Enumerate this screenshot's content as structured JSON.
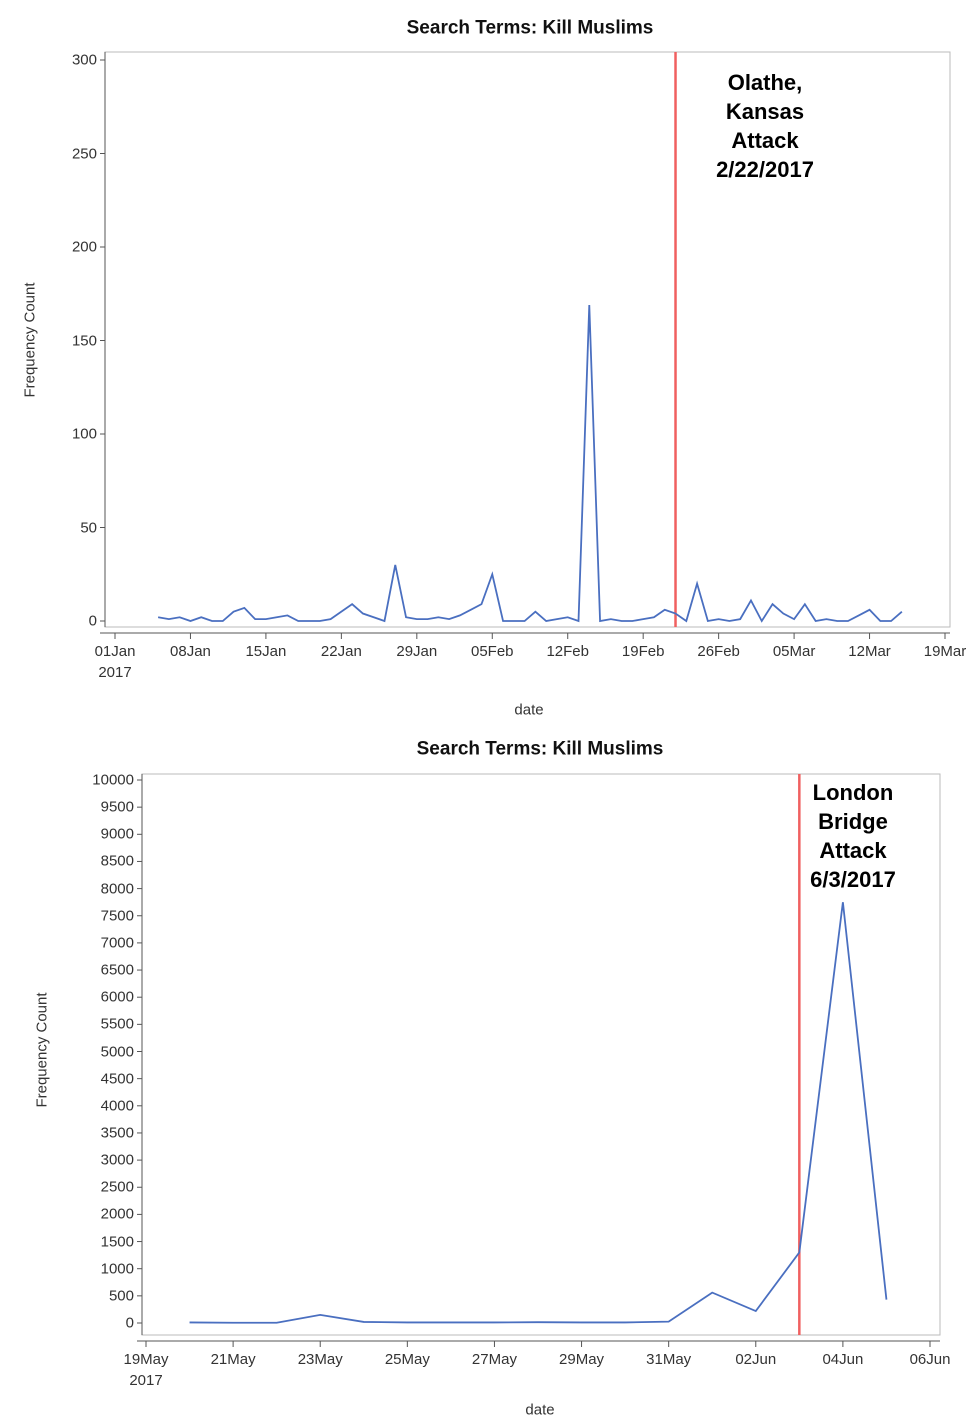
{
  "chart_data": [
    {
      "type": "line",
      "title": "Search Terms: Kill Muslims",
      "x_label": "date",
      "y_label": "Frequency Count",
      "x": [
        "2017-01-05",
        "2017-01-06",
        "2017-01-07",
        "2017-01-08",
        "2017-01-09",
        "2017-01-10",
        "2017-01-11",
        "2017-01-12",
        "2017-01-13",
        "2017-01-14",
        "2017-01-15",
        "2017-01-16",
        "2017-01-17",
        "2017-01-18",
        "2017-01-19",
        "2017-01-20",
        "2017-01-21",
        "2017-01-22",
        "2017-01-23",
        "2017-01-24",
        "2017-01-25",
        "2017-01-26",
        "2017-01-27",
        "2017-01-28",
        "2017-01-29",
        "2017-01-30",
        "2017-01-31",
        "2017-02-01",
        "2017-02-02",
        "2017-02-03",
        "2017-02-04",
        "2017-02-05",
        "2017-02-06",
        "2017-02-07",
        "2017-02-08",
        "2017-02-09",
        "2017-02-10",
        "2017-02-11",
        "2017-02-12",
        "2017-02-13",
        "2017-02-14",
        "2017-02-15",
        "2017-02-16",
        "2017-02-17",
        "2017-02-18",
        "2017-02-19",
        "2017-02-20",
        "2017-02-21",
        "2017-02-22",
        "2017-02-23",
        "2017-02-24",
        "2017-02-25",
        "2017-02-26",
        "2017-02-27",
        "2017-02-28",
        "2017-03-01",
        "2017-03-02",
        "2017-03-03",
        "2017-03-04",
        "2017-03-05",
        "2017-03-06",
        "2017-03-07",
        "2017-03-08",
        "2017-03-09",
        "2017-03-10",
        "2017-03-11",
        "2017-03-12",
        "2017-03-13",
        "2017-03-14",
        "2017-03-15"
      ],
      "series": [
        {
          "name": "Frequency Count",
          "color": "#4a6fc0",
          "values": [
            2,
            1,
            2,
            0,
            2,
            0,
            0,
            5,
            7,
            1,
            1,
            2,
            3,
            0,
            0,
            0,
            1,
            5,
            9,
            4,
            2,
            0,
            30,
            2,
            1,
            1,
            2,
            1,
            3,
            6,
            9,
            25,
            0,
            0,
            0,
            5,
            0,
            1,
            2,
            0,
            169,
            0,
            1,
            0,
            0,
            1,
            2,
            6,
            4,
            0,
            20,
            0,
            1,
            0,
            1,
            11,
            0,
            9,
            4,
            1,
            9,
            0,
            1,
            0,
            0,
            3,
            6,
            0,
            0,
            5
          ]
        }
      ],
      "xlim": [
        "2017-01-01",
        "2017-03-19"
      ],
      "xticks": [
        {
          "value": "2017-01-01",
          "label": "01Jan\n2017"
        },
        {
          "value": "2017-01-08",
          "label": "08Jan"
        },
        {
          "value": "2017-01-15",
          "label": "15Jan"
        },
        {
          "value": "2017-01-22",
          "label": "22Jan"
        },
        {
          "value": "2017-01-29",
          "label": "29Jan"
        },
        {
          "value": "2017-02-05",
          "label": "05Feb"
        },
        {
          "value": "2017-02-12",
          "label": "12Feb"
        },
        {
          "value": "2017-02-19",
          "label": "19Feb"
        },
        {
          "value": "2017-02-26",
          "label": "26Feb"
        },
        {
          "value": "2017-03-05",
          "label": "05Mar"
        },
        {
          "value": "2017-03-12",
          "label": "12Mar"
        },
        {
          "value": "2017-03-19",
          "label": "19Mar"
        }
      ],
      "ylim": [
        0,
        300
      ],
      "yticks": [
        0,
        50,
        100,
        150,
        200,
        250,
        300
      ],
      "reference_line": {
        "x": "2017-02-22",
        "color": "#f06060",
        "label": "Olathe,\nKansas\nAttack\n2/22/2017"
      }
    },
    {
      "type": "line",
      "title": "Search Terms: Kill Muslims",
      "x_label": "date",
      "y_label": "Frequency Count",
      "x": [
        "2017-05-20",
        "2017-05-21",
        "2017-05-22",
        "2017-05-23",
        "2017-05-24",
        "2017-05-25",
        "2017-05-26",
        "2017-05-27",
        "2017-05-28",
        "2017-05-29",
        "2017-05-30",
        "2017-05-31",
        "2017-06-01",
        "2017-06-02",
        "2017-06-03",
        "2017-06-04",
        "2017-06-05"
      ],
      "series": [
        {
          "name": "Frequency Count",
          "color": "#4a6fc0",
          "values": [
            10,
            5,
            5,
            150,
            20,
            10,
            10,
            10,
            15,
            10,
            10,
            25,
            560,
            220,
            1300,
            7750,
            430
          ]
        }
      ],
      "xlim": [
        "2017-05-19",
        "2017-06-06"
      ],
      "xticks": [
        {
          "value": "2017-05-19",
          "label": "19May\n2017"
        },
        {
          "value": "2017-05-21",
          "label": "21May"
        },
        {
          "value": "2017-05-23",
          "label": "23May"
        },
        {
          "value": "2017-05-25",
          "label": "25May"
        },
        {
          "value": "2017-05-27",
          "label": "27May"
        },
        {
          "value": "2017-05-29",
          "label": "29May"
        },
        {
          "value": "2017-05-31",
          "label": "31May"
        },
        {
          "value": "2017-06-02",
          "label": "02Jun"
        },
        {
          "value": "2017-06-04",
          "label": "04Jun"
        },
        {
          "value": "2017-06-06",
          "label": "06Jun"
        }
      ],
      "ylim": [
        0,
        10000
      ],
      "yticks": [
        0,
        500,
        1000,
        1500,
        2000,
        2500,
        3000,
        3500,
        4000,
        4500,
        5000,
        5500,
        6000,
        6500,
        7000,
        7500,
        8000,
        8500,
        9000,
        9500,
        10000
      ],
      "reference_line": {
        "x": "2017-06-03",
        "color": "#f06060",
        "label": "London\nBridge\nAttack\n6/3/2017"
      }
    }
  ]
}
